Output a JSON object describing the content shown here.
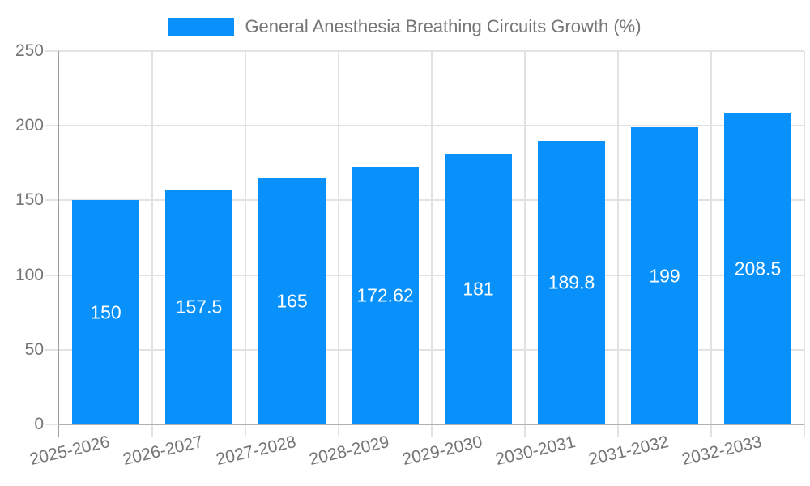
{
  "legend": {
    "swatch_color": "#0991fb",
    "label": "General Anesthesia Breathing Circuits Growth (%)"
  },
  "chart_data": {
    "type": "bar",
    "title": "General Anesthesia Breathing Circuits Growth (%)",
    "categories": [
      "2025-2026",
      "2026-2027",
      "2027-2028",
      "2028-2029",
      "2029-2030",
      "2030-2031",
      "2031-2032",
      "2032-2033"
    ],
    "values": [
      150,
      157.5,
      165,
      172.62,
      181,
      189.8,
      199,
      208.5
    ],
    "value_labels": [
      "150",
      "157.5",
      "165",
      "172.62",
      "181",
      "189.8",
      "199",
      "208.5"
    ],
    "xlabel": "",
    "ylabel": "",
    "ylim": [
      0,
      250
    ],
    "y_ticks": [
      0,
      50,
      100,
      150,
      200,
      250
    ],
    "grid": true,
    "legend_position": "top",
    "bar_color": "#0991fb",
    "value_label_color": "#ffffff",
    "axis_text_color": "#757575"
  }
}
